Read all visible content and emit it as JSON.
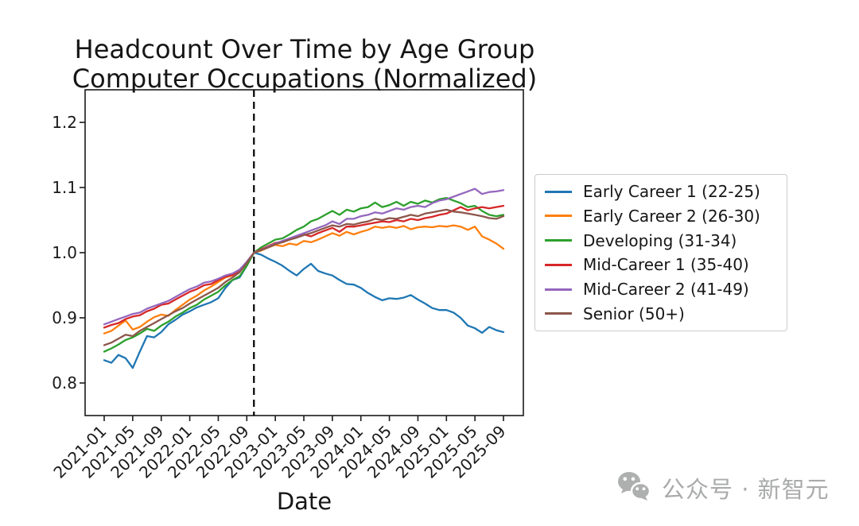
{
  "title": {
    "line1": "Headcount Over Time by Age Group",
    "line2": "Computer Occupations (Normalized)"
  },
  "xlabel": "Date",
  "watermark": {
    "icon": "wechat-icon",
    "text": "公众号 · 新智元"
  },
  "chart_data": {
    "type": "line",
    "title": "Headcount Over Time by Age Group — Computer Occupations (Normalized)",
    "xlabel": "Date",
    "ylabel": "",
    "x_frequency": "monthly",
    "x_range": [
      "2021-01",
      "2025-09"
    ],
    "x_tick_labels": [
      "2021-01",
      "2021-05",
      "2021-09",
      "2022-01",
      "2022-05",
      "2022-09",
      "2023-01",
      "2023-05",
      "2023-09",
      "2024-01",
      "2024-05",
      "2024-09",
      "2025-01",
      "2025-05",
      "2025-09"
    ],
    "y_ticks": [
      0.8,
      0.9,
      1.0,
      1.1,
      1.2
    ],
    "ylim": [
      0.75,
      1.25
    ],
    "grid": false,
    "legend_position": "right",
    "vline": {
      "index": 21,
      "x": "2022-10",
      "style": "dashed",
      "color": "#000000",
      "note": "normalization point, all series = 1.0"
    },
    "series": [
      {
        "name": "Early Career 1 (22-25)",
        "color": "#1f77b4",
        "values": [
          0.835,
          0.831,
          0.843,
          0.838,
          0.823,
          0.848,
          0.872,
          0.87,
          0.878,
          0.89,
          0.897,
          0.905,
          0.91,
          0.916,
          0.92,
          0.924,
          0.93,
          0.946,
          0.958,
          0.962,
          0.98,
          1.0,
          0.997,
          0.991,
          0.986,
          0.98,
          0.972,
          0.965,
          0.975,
          0.983,
          0.972,
          0.968,
          0.965,
          0.958,
          0.952,
          0.951,
          0.946,
          0.938,
          0.932,
          0.927,
          0.93,
          0.929,
          0.931,
          0.935,
          0.928,
          0.922,
          0.915,
          0.912,
          0.912,
          0.908,
          0.9,
          0.888,
          0.884,
          0.877,
          0.886,
          0.881,
          0.878
        ]
      },
      {
        "name": "Early Career 2 (26-30)",
        "color": "#ff7f0e",
        "values": [
          0.876,
          0.88,
          0.888,
          0.896,
          0.882,
          0.886,
          0.894,
          0.901,
          0.905,
          0.903,
          0.912,
          0.92,
          0.928,
          0.934,
          0.942,
          0.948,
          0.955,
          0.962,
          0.965,
          0.972,
          0.986,
          1.0,
          1.003,
          1.008,
          1.012,
          1.01,
          1.014,
          1.012,
          1.018,
          1.016,
          1.02,
          1.025,
          1.03,
          1.026,
          1.032,
          1.028,
          1.032,
          1.035,
          1.04,
          1.038,
          1.04,
          1.038,
          1.041,
          1.036,
          1.039,
          1.04,
          1.039,
          1.041,
          1.04,
          1.042,
          1.04,
          1.035,
          1.04,
          1.025,
          1.02,
          1.014,
          1.006
        ]
      },
      {
        "name": "Developing (31-34)",
        "color": "#2ca02c",
        "values": [
          0.848,
          0.853,
          0.859,
          0.866,
          0.87,
          0.876,
          0.883,
          0.88,
          0.888,
          0.894,
          0.902,
          0.908,
          0.915,
          0.92,
          0.928,
          0.934,
          0.94,
          0.95,
          0.958,
          0.964,
          0.98,
          1.0,
          1.008,
          1.014,
          1.02,
          1.022,
          1.028,
          1.035,
          1.04,
          1.048,
          1.052,
          1.058,
          1.064,
          1.058,
          1.066,
          1.063,
          1.068,
          1.07,
          1.077,
          1.07,
          1.073,
          1.078,
          1.072,
          1.078,
          1.075,
          1.08,
          1.077,
          1.082,
          1.084,
          1.08,
          1.076,
          1.07,
          1.072,
          1.064,
          1.058,
          1.056,
          1.058
        ]
      },
      {
        "name": "Mid-Career 1 (35-40)",
        "color": "#d62728",
        "values": [
          0.885,
          0.889,
          0.892,
          0.898,
          0.902,
          0.904,
          0.91,
          0.914,
          0.92,
          0.922,
          0.928,
          0.934,
          0.94,
          0.944,
          0.95,
          0.952,
          0.958,
          0.963,
          0.966,
          0.972,
          0.985,
          1.0,
          1.005,
          1.01,
          1.015,
          1.016,
          1.02,
          1.024,
          1.028,
          1.025,
          1.03,
          1.034,
          1.038,
          1.032,
          1.04,
          1.04,
          1.042,
          1.044,
          1.046,
          1.048,
          1.047,
          1.05,
          1.048,
          1.052,
          1.05,
          1.053,
          1.055,
          1.058,
          1.06,
          1.065,
          1.07,
          1.065,
          1.068,
          1.07,
          1.068,
          1.07,
          1.072
        ]
      },
      {
        "name": "Mid-Career 2 (41-49)",
        "color": "#9467bd",
        "values": [
          0.89,
          0.894,
          0.898,
          0.902,
          0.906,
          0.908,
          0.914,
          0.918,
          0.922,
          0.926,
          0.932,
          0.938,
          0.944,
          0.948,
          0.954,
          0.956,
          0.96,
          0.965,
          0.968,
          0.974,
          0.986,
          1.0,
          1.004,
          1.009,
          1.014,
          1.018,
          1.022,
          1.026,
          1.03,
          1.034,
          1.038,
          1.042,
          1.048,
          1.044,
          1.052,
          1.052,
          1.056,
          1.058,
          1.062,
          1.06,
          1.064,
          1.068,
          1.066,
          1.07,
          1.072,
          1.07,
          1.076,
          1.08,
          1.082,
          1.086,
          1.09,
          1.094,
          1.098,
          1.09,
          1.093,
          1.094,
          1.096
        ]
      },
      {
        "name": "Senior (50+)",
        "color": "#8c564b",
        "values": [
          0.858,
          0.862,
          0.868,
          0.874,
          0.872,
          0.88,
          0.886,
          0.892,
          0.898,
          0.904,
          0.91,
          0.915,
          0.922,
          0.928,
          0.934,
          0.94,
          0.946,
          0.955,
          0.962,
          0.97,
          0.984,
          1.0,
          1.004,
          1.008,
          1.013,
          1.016,
          1.02,
          1.023,
          1.027,
          1.03,
          1.034,
          1.038,
          1.042,
          1.04,
          1.044,
          1.043,
          1.046,
          1.048,
          1.052,
          1.05,
          1.053,
          1.052,
          1.055,
          1.058,
          1.056,
          1.06,
          1.062,
          1.064,
          1.066,
          1.063,
          1.062,
          1.06,
          1.058,
          1.056,
          1.053,
          1.052,
          1.056
        ]
      }
    ]
  }
}
